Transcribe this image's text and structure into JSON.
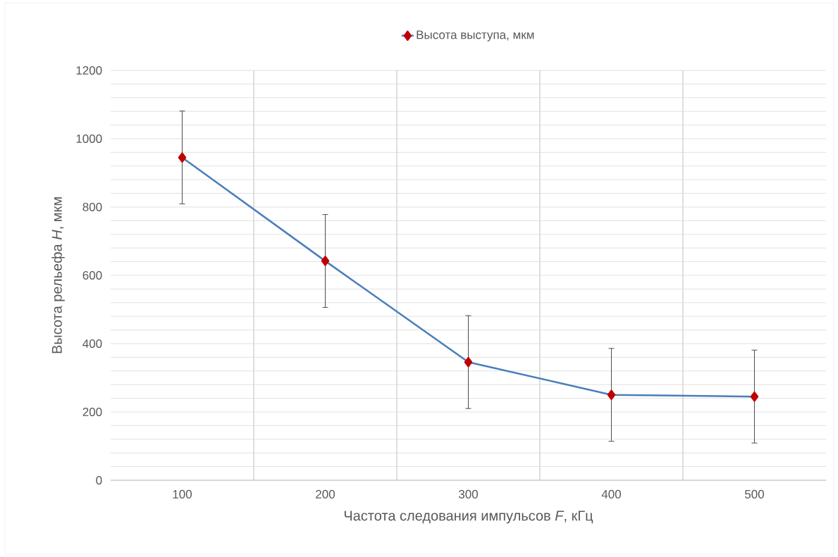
{
  "chart_data": {
    "type": "line",
    "xlabel": "Частота следования импульсов *F*, кГц",
    "ylabel": "Высота рельефа *H*, мкм",
    "categories": [
      "100",
      "200",
      "300",
      "400",
      "500"
    ],
    "series": [
      {
        "name": "Высота выступа, мкм",
        "color": "#4a7ebb",
        "colors": [
          "#c00000",
          "#c00000",
          "#c00000",
          "#c00000",
          "#c00000"
        ],
        "values": [
          945,
          642,
          346,
          250,
          245
        ],
        "errors": [
          136,
          136,
          136,
          136,
          136
        ]
      }
    ],
    "ylim": [
      0,
      1200
    ],
    "yticks": [
      0,
      {
        "value": 40,
        "label": null
      },
      {
        "value": 80,
        "label": null
      },
      {
        "value": 120,
        "label": null
      },
      {
        "value": 160,
        "label": null
      },
      200,
      {
        "value": 240,
        "label": null
      },
      {
        "value": 280,
        "label": null
      },
      {
        "value": 320,
        "label": null
      },
      {
        "value": 360,
        "label": null
      },
      400,
      {
        "value": 440,
        "label": null
      },
      {
        "value": 480,
        "label": null
      },
      {
        "value": 520,
        "label": null
      },
      {
        "value": 560,
        "label": null
      },
      600,
      {
        "value": 640,
        "label": null
      },
      {
        "value": 680,
        "label": null
      },
      {
        "value": 720,
        "label": null
      },
      {
        "value": 760,
        "label": null
      },
      800,
      {
        "value": 840,
        "label": null
      },
      {
        "value": 880,
        "label": null
      },
      {
        "value": 920,
        "label": null
      },
      {
        "value": 960,
        "label": null
      },
      1000,
      {
        "value": 1040,
        "label": null
      },
      {
        "value": 1080,
        "label": null
      },
      {
        "value": 1120,
        "label": null
      },
      {
        "value": 1160,
        "label": null
      },
      1200
    ],
    "grid": true,
    "legend": "top",
    "marker": "diamond",
    "line_style": "solid"
  }
}
